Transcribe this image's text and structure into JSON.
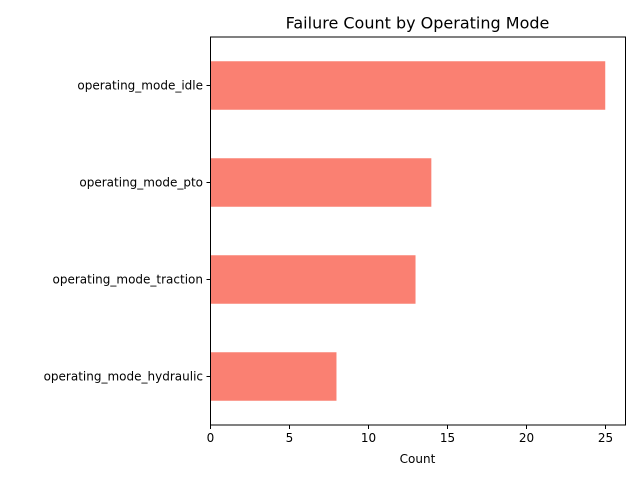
{
  "chart_data": {
    "type": "bar",
    "orientation": "horizontal",
    "title": "Failure Count by Operating Mode",
    "xlabel": "Count",
    "ylabel": "",
    "categories": [
      "operating_mode_idle",
      "operating_mode_pto",
      "operating_mode_traction",
      "operating_mode_hydraulic"
    ],
    "values": [
      25,
      14,
      13,
      8
    ],
    "xlim": [
      0,
      26.25
    ],
    "xticks": [
      0,
      5,
      10,
      15,
      20,
      25
    ],
    "grid": false,
    "bar_color": "#fa8072",
    "axis_color": "#000000"
  }
}
